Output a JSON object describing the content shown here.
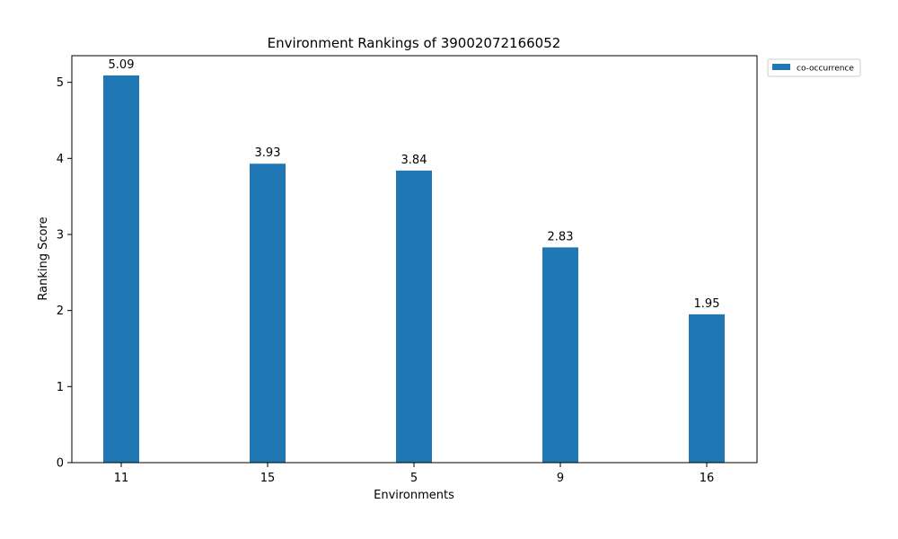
{
  "chart_data": {
    "type": "bar",
    "title": "Environment Rankings of 39002072166052",
    "xlabel": "Environments",
    "ylabel": "Ranking Score",
    "categories": [
      "11",
      "15",
      "5",
      "9",
      "16"
    ],
    "series": [
      {
        "name": "co-occurrence",
        "values": [
          5.09,
          3.93,
          3.84,
          2.83,
          1.95
        ],
        "labels": [
          "5.09",
          "3.93",
          "3.84",
          "2.83",
          "1.95"
        ],
        "color": "#1f77b4"
      }
    ],
    "ylim": [
      0,
      5.35
    ],
    "yticks": [
      "0",
      "1",
      "2",
      "3",
      "4",
      "5"
    ],
    "grid": false,
    "legend_position": "outside top-right"
  }
}
